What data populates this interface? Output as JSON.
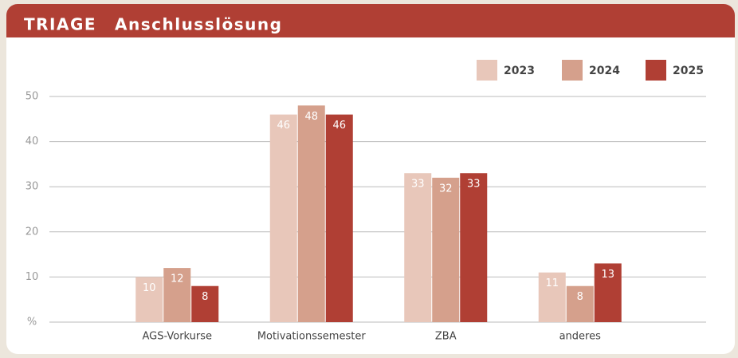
{
  "chart_data": {
    "type": "bar",
    "title": "TRIAGE",
    "subtitle": "Anschlusslösung",
    "categories": [
      "AGS-Vorkurse",
      "Motivationssemester",
      "ZBA",
      "anderes"
    ],
    "series": [
      {
        "name": "2023",
        "color": "#e8c7ba",
        "values": [
          10,
          46,
          33,
          11
        ]
      },
      {
        "name": "2024",
        "color": "#d5a08c",
        "values": [
          12,
          48,
          32,
          8
        ]
      },
      {
        "name": "2025",
        "color": "#b03f34",
        "values": [
          8,
          46,
          33,
          13
        ]
      }
    ],
    "ylim": [
      0,
      50
    ],
    "yticks": [
      {
        "value": 0,
        "label": "%"
      },
      10,
      20,
      30,
      40,
      50
    ],
    "grid": true,
    "legend": "top-right"
  }
}
